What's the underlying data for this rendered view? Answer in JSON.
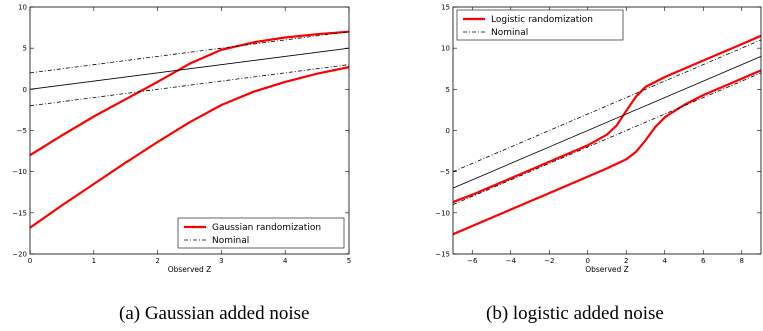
{
  "captions": {
    "a": "(a) Gaussian added noise",
    "b": "(b) logistic added noise"
  },
  "colors": {
    "randomization": "#ff0000",
    "nominal": "#000000"
  },
  "chart_data": [
    {
      "type": "line",
      "xlabel": "Observed Z",
      "ylabel": "",
      "xlim": [
        0,
        5
      ],
      "ylim": [
        -20,
        10
      ],
      "xticks": [
        0,
        1,
        2,
        3,
        4,
        5
      ],
      "yticks": [
        -20,
        -15,
        -10,
        -5,
        0,
        5,
        10
      ],
      "legend": {
        "position": "bottom-right",
        "entries": [
          "Gaussian randomization",
          "Nominal"
        ]
      },
      "series": [
        {
          "name": "Gaussian randomization",
          "style": "red-solid-thick",
          "x": [
            0,
            0.5,
            1,
            1.5,
            2,
            2.5,
            3,
            3.5,
            4,
            4.5,
            5
          ],
          "y": [
            -8.0,
            -5.6,
            -3.3,
            -1.2,
            0.9,
            3.1,
            4.8,
            5.7,
            6.3,
            6.7,
            7.0
          ]
        },
        {
          "name": "Gaussian randomization",
          "style": "red-solid-thick",
          "x": [
            0,
            0.5,
            1,
            1.5,
            2,
            2.5,
            3,
            3.5,
            4,
            4.5,
            5
          ],
          "y": [
            -16.8,
            -14.1,
            -11.5,
            -8.9,
            -6.4,
            -4.0,
            -1.9,
            -0.3,
            0.9,
            1.9,
            2.7
          ]
        },
        {
          "name": "Nominal",
          "style": "black-dashdot",
          "x": [
            0,
            5
          ],
          "y": [
            2.0,
            7.0
          ]
        },
        {
          "name": "Nominal",
          "style": "black-dashdot",
          "x": [
            0,
            5
          ],
          "y": [
            -2.0,
            3.0
          ]
        },
        {
          "name": "",
          "style": "black-solid-thin",
          "x": [
            0,
            5
          ],
          "y": [
            0.0,
            5.0
          ]
        }
      ]
    },
    {
      "type": "line",
      "xlabel": "Observed Z",
      "ylabel": "",
      "xlim": [
        -7,
        9
      ],
      "ylim": [
        -15,
        15
      ],
      "xticks": [
        -6,
        -4,
        -2,
        0,
        2,
        4,
        6,
        8
      ],
      "yticks": [
        -15,
        -10,
        -5,
        0,
        5,
        10,
        15
      ],
      "legend": {
        "position": "top-left",
        "entries": [
          "Logistic randomization",
          "Nominal"
        ]
      },
      "series": [
        {
          "name": "Logistic randomization",
          "style": "red-solid-thick",
          "x": [
            -7,
            -6,
            -4,
            -2,
            0,
            1,
            1.5,
            2,
            2.5,
            3,
            4,
            6,
            8,
            9
          ],
          "y": [
            -8.7,
            -7.8,
            -5.8,
            -3.8,
            -1.8,
            -0.5,
            0.6,
            2.4,
            4.1,
            5.3,
            6.5,
            8.5,
            10.5,
            11.5
          ]
        },
        {
          "name": "Logistic randomization",
          "style": "red-solid-thick",
          "x": [
            -7,
            -6,
            -4,
            -2,
            0,
            1,
            2,
            2.5,
            3,
            3.5,
            4,
            5,
            6,
            8,
            9
          ],
          "y": [
            -12.6,
            -11.6,
            -9.6,
            -7.6,
            -5.6,
            -4.6,
            -3.5,
            -2.6,
            -1.2,
            0.4,
            1.6,
            3.1,
            4.3,
            6.3,
            7.3
          ]
        },
        {
          "name": "Nominal",
          "style": "black-dashdot",
          "x": [
            -7,
            9
          ],
          "y": [
            -5.0,
            11.0
          ]
        },
        {
          "name": "Nominal",
          "style": "black-dashdot",
          "x": [
            -7,
            9
          ],
          "y": [
            -9.0,
            7.0
          ]
        },
        {
          "name": "",
          "style": "black-solid-thin",
          "x": [
            -7,
            9
          ],
          "y": [
            -7.0,
            9.0
          ]
        }
      ]
    }
  ]
}
